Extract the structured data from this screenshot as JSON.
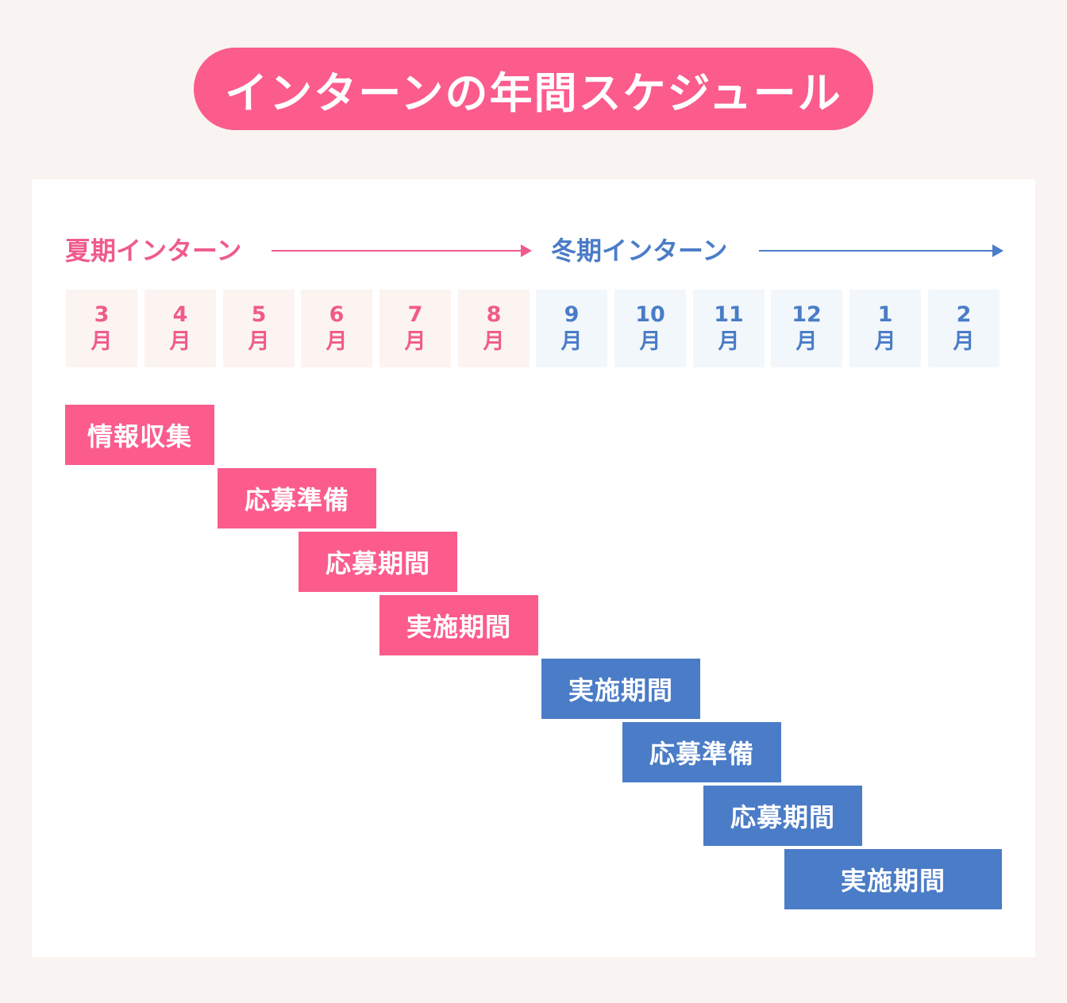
{
  "title": "インターンの年間スケジュール",
  "colors": {
    "summer": "#f05b8b",
    "winter": "#4a7cc7",
    "title_bg": "#fb5c8c"
  },
  "seasons": {
    "summer": "夏期インターン",
    "winter": "冬期インターン"
  },
  "months": [
    {
      "num": "3",
      "unit": "月"
    },
    {
      "num": "4",
      "unit": "月"
    },
    {
      "num": "5",
      "unit": "月"
    },
    {
      "num": "6",
      "unit": "月"
    },
    {
      "num": "7",
      "unit": "月"
    },
    {
      "num": "8",
      "unit": "月"
    },
    {
      "num": "9",
      "unit": "月"
    },
    {
      "num": "10",
      "unit": "月"
    },
    {
      "num": "11",
      "unit": "月"
    },
    {
      "num": "12",
      "unit": "月"
    },
    {
      "num": "1",
      "unit": "月"
    },
    {
      "num": "2",
      "unit": "月"
    }
  ],
  "phases": [
    {
      "label": "情報収集",
      "season": "summer"
    },
    {
      "label": "応募準備",
      "season": "summer"
    },
    {
      "label": "応募期間",
      "season": "summer"
    },
    {
      "label": "実施期間",
      "season": "summer"
    },
    {
      "label": "実施期間",
      "season": "winter"
    },
    {
      "label": "応募準備",
      "season": "winter"
    },
    {
      "label": "応募期間",
      "season": "winter"
    },
    {
      "label": "実施期間",
      "season": "winter"
    }
  ]
}
